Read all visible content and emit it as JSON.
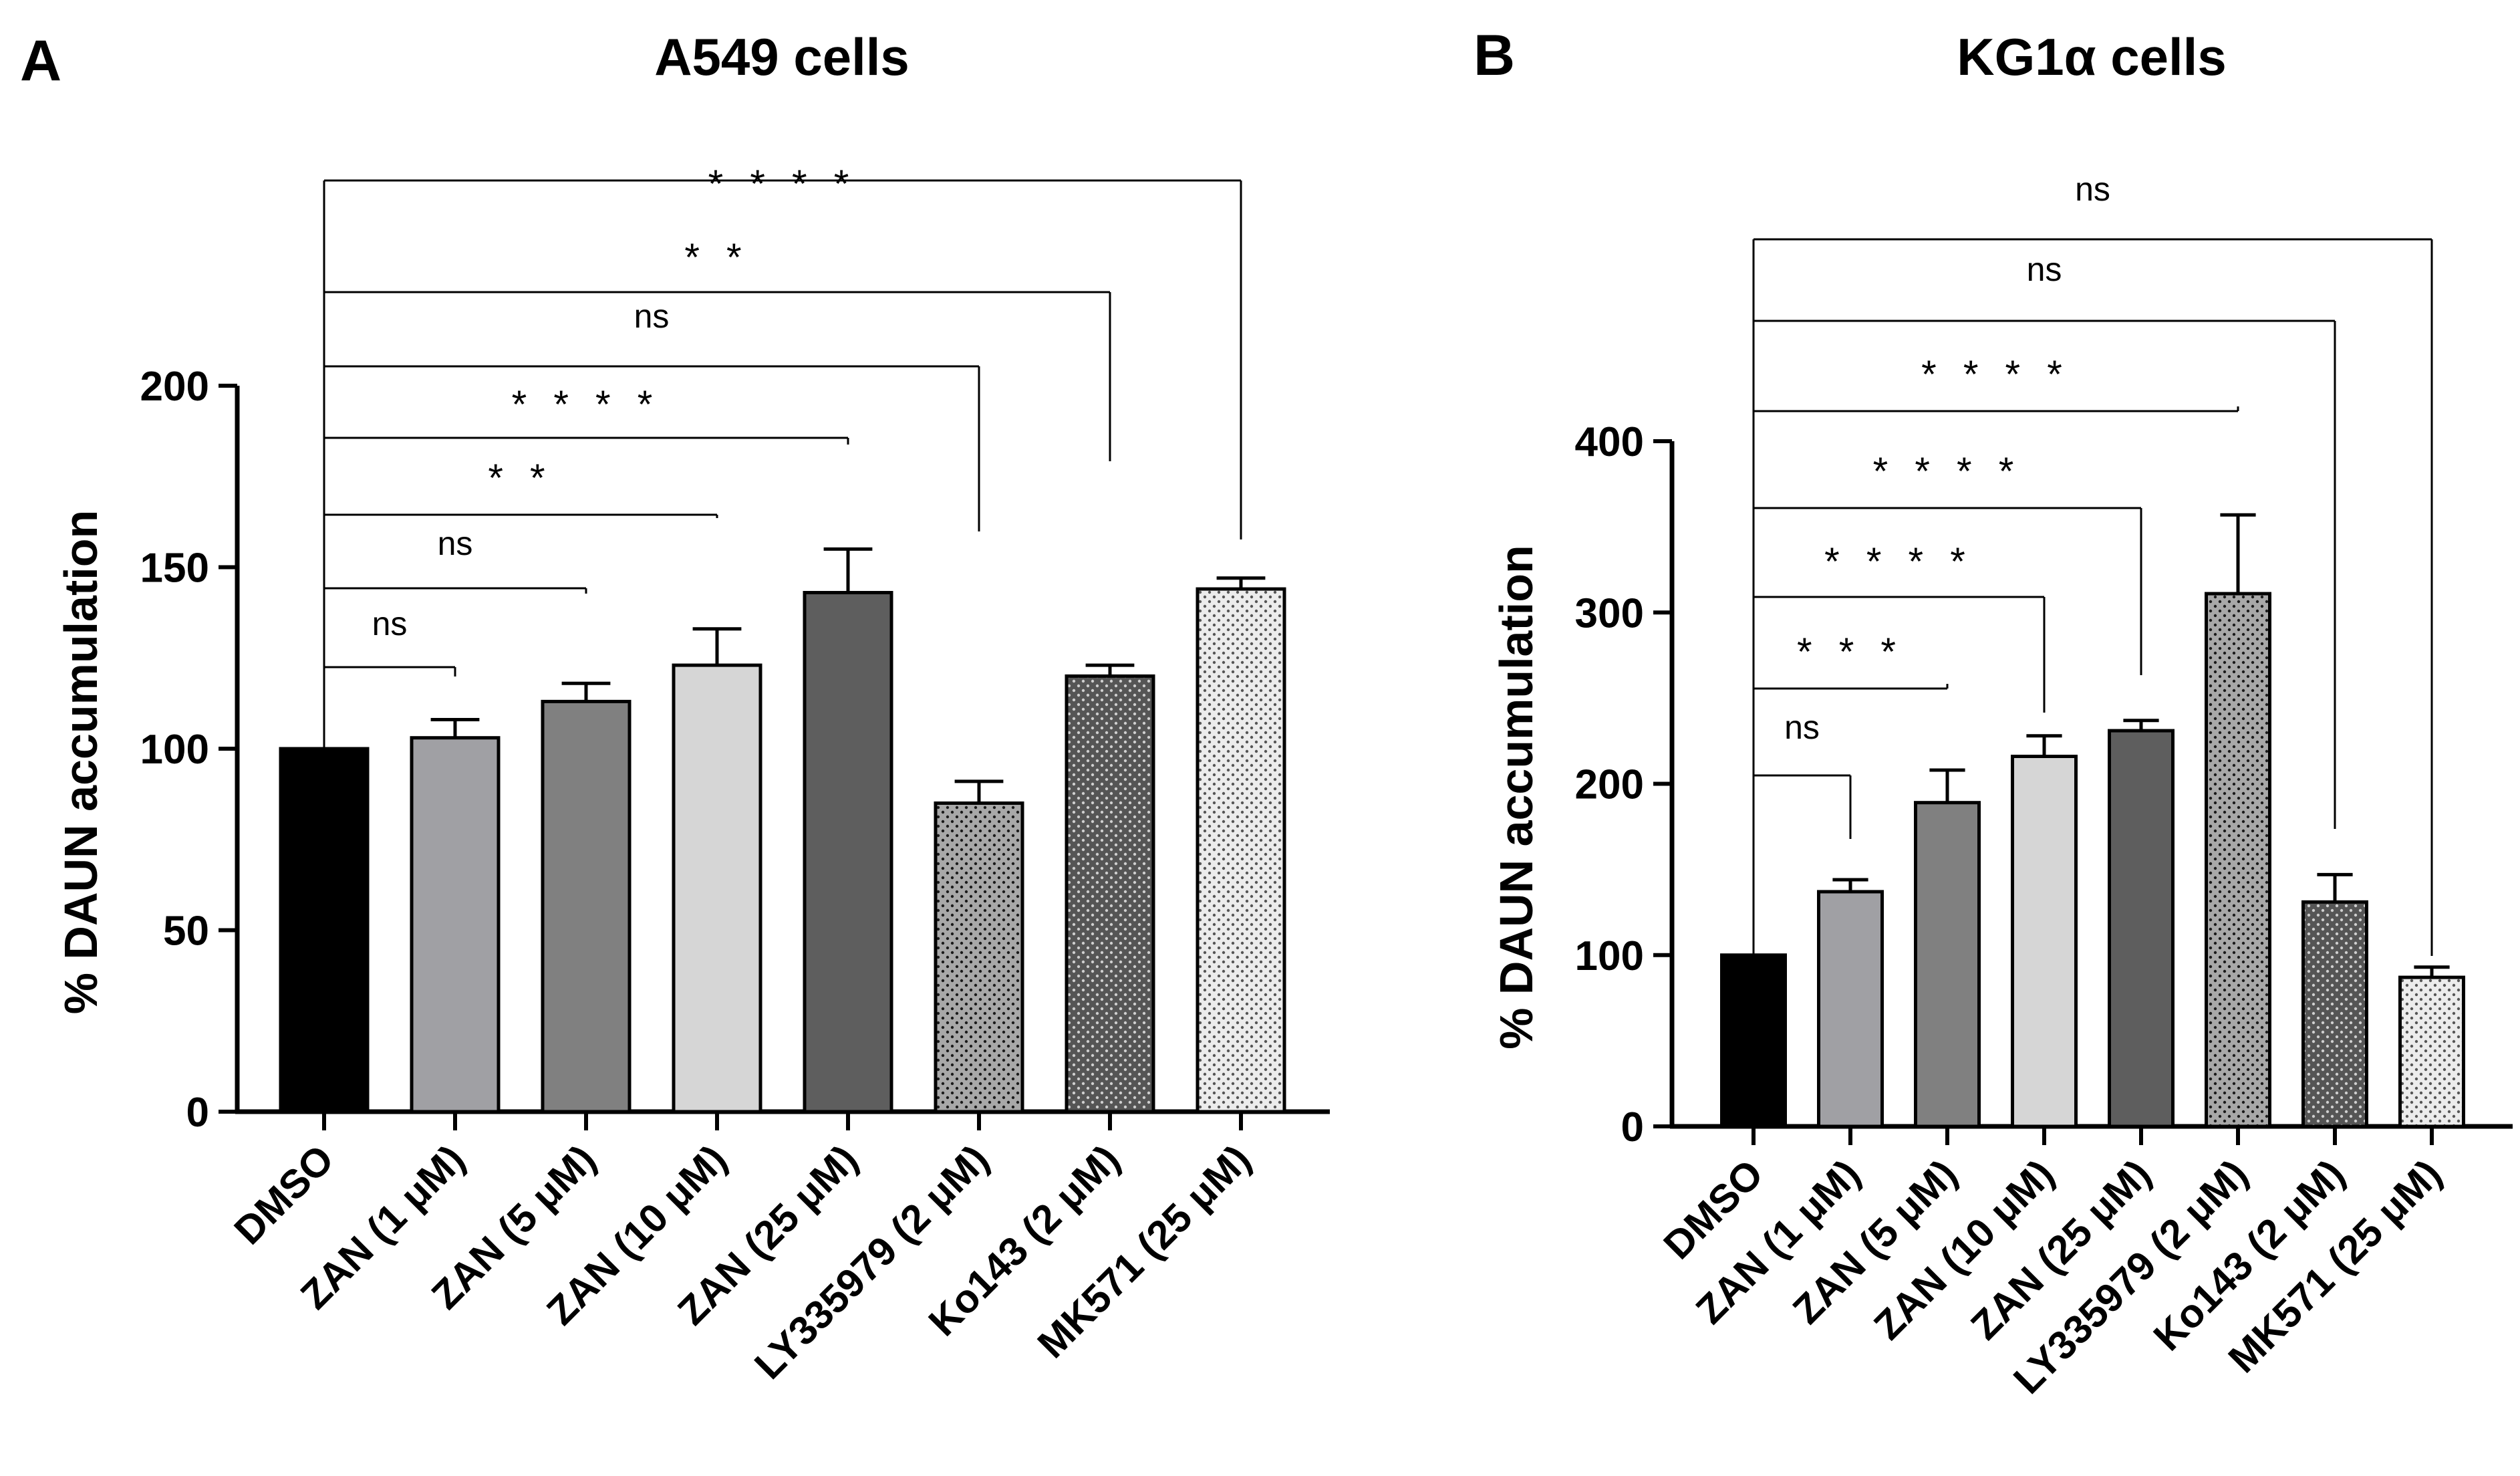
{
  "chart_data": [
    {
      "panel": "A",
      "type": "bar",
      "title": "A549 cells",
      "xlabel": "",
      "ylabel": "% DAUN accumulation",
      "ylim": [
        0,
        200
      ],
      "yticks": [
        "0",
        "50",
        "100",
        "150",
        "200"
      ],
      "categories": [
        "DMSO",
        "ZAN (1 μM)",
        "ZAN (5 μM)",
        "ZAN (10 μM)",
        "ZAN (25 μM)",
        "LY335979 (2 μM)",
        "Ko143 (2 μM)",
        "MK571 (25 μM)"
      ],
      "values": [
        100,
        103,
        113,
        123,
        143,
        85,
        120,
        144
      ],
      "errors": [
        0,
        5,
        5,
        10,
        12,
        6,
        3,
        3
      ],
      "fills": [
        "#000000",
        "#a0a0a4",
        "#808080",
        "#d6d6d6",
        "#5e5e5e",
        "#a8a8a8",
        "#555555",
        "#ececec"
      ],
      "dotted": [
        false,
        false,
        false,
        false,
        false,
        true,
        true,
        true
      ],
      "dot_colors": [
        "",
        "",
        "",
        "",
        "",
        "#1a1a1a",
        "#cfcfcf",
        "#555555"
      ],
      "comparisons": [
        {
          "to": 1,
          "label": "ns"
        },
        {
          "to": 2,
          "label": "ns"
        },
        {
          "to": 3,
          "label": "* *"
        },
        {
          "to": 4,
          "label": "* * * *"
        },
        {
          "to": 5,
          "label": "ns"
        },
        {
          "to": 6,
          "label": "* *"
        },
        {
          "to": 7,
          "label": "* * * *"
        }
      ]
    },
    {
      "panel": "B",
      "type": "bar",
      "title": "KG1α cells",
      "xlabel": "",
      "ylabel": "% DAUN accumulation",
      "ylim": [
        0,
        400
      ],
      "yticks": [
        "0",
        "100",
        "200",
        "300",
        "400"
      ],
      "categories": [
        "DMSO",
        "ZAN (1 μM)",
        "ZAN (5 μM)",
        "ZAN (10 μM)",
        "ZAN (25 μM)",
        "LY335979 (2 μM)",
        "Ko143 (2 μM)",
        "MK571 (25 μM)"
      ],
      "values": [
        100,
        137,
        189,
        216,
        231,
        311,
        131,
        87
      ],
      "errors": [
        0,
        7,
        19,
        12,
        6,
        46,
        16,
        6
      ],
      "fills": [
        "#000000",
        "#a0a0a4",
        "#808080",
        "#d6d6d6",
        "#5e5e5e",
        "#a8a8a8",
        "#555555",
        "#ececec"
      ],
      "dotted": [
        false,
        false,
        false,
        false,
        false,
        true,
        true,
        true
      ],
      "dot_colors": [
        "",
        "",
        "",
        "",
        "",
        "#1a1a1a",
        "#cfcfcf",
        "#555555"
      ],
      "comparisons": [
        {
          "to": 1,
          "label": "ns"
        },
        {
          "to": 2,
          "label": "* * *"
        },
        {
          "to": 3,
          "label": "* * * *"
        },
        {
          "to": 4,
          "label": "* * * *"
        },
        {
          "to": 5,
          "label": "* * * *"
        },
        {
          "to": 6,
          "label": "ns"
        },
        {
          "to": 7,
          "label": "ns"
        }
      ]
    }
  ]
}
